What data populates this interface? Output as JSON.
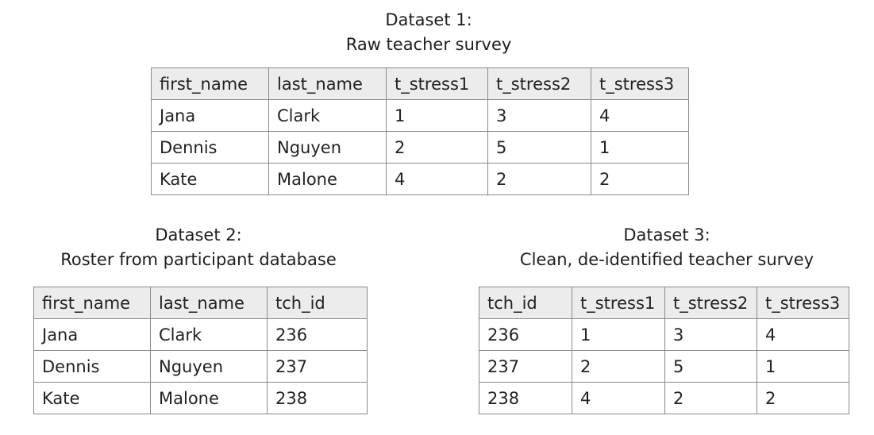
{
  "dataset1": {
    "title": "Dataset 1:",
    "subtitle": "Raw teacher survey",
    "columns": [
      "first_name",
      "last_name",
      "t_stress1",
      "t_stress2",
      "t_stress3"
    ],
    "rows": [
      [
        "Jana",
        "Clark",
        "1",
        "3",
        "4"
      ],
      [
        "Dennis",
        "Nguyen",
        "2",
        "5",
        "1"
      ],
      [
        "Kate",
        "Malone",
        "4",
        "2",
        "2"
      ]
    ]
  },
  "dataset2": {
    "title": "Dataset 2:",
    "subtitle": "Roster from participant database",
    "columns": [
      "first_name",
      "last_name",
      "tch_id"
    ],
    "rows": [
      [
        "Jana",
        "Clark",
        "236"
      ],
      [
        "Dennis",
        "Nguyen",
        "237"
      ],
      [
        "Kate",
        "Malone",
        "238"
      ]
    ]
  },
  "dataset3": {
    "title": "Dataset 3:",
    "subtitle": "Clean, de-identified teacher survey",
    "columns": [
      "tch_id",
      "t_stress1",
      "t_stress2",
      "t_stress3"
    ],
    "rows": [
      [
        "236",
        "1",
        "3",
        "4"
      ],
      [
        "237",
        "2",
        "5",
        "1"
      ],
      [
        "238",
        "4",
        "2",
        "2"
      ]
    ]
  }
}
